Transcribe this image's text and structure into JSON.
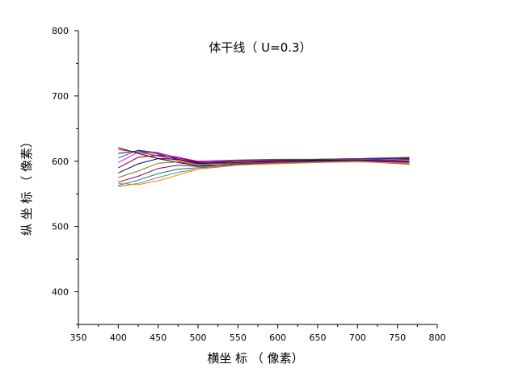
{
  "chart_data": {
    "type": "line",
    "title": "体干线（ U=0.3）",
    "xlabel": "横坐 标 （ 像素）",
    "ylabel": "纵 坐 标 （ 像素）",
    "xlim": [
      350,
      800
    ],
    "ylim": [
      350,
      800
    ],
    "x_ticks": [
      350,
      400,
      450,
      500,
      550,
      600,
      650,
      700,
      750,
      800
    ],
    "y_ticks": [
      400,
      500,
      600,
      700,
      800
    ],
    "grid": false,
    "legend": "none",
    "x_range": [
      400,
      765
    ],
    "series_colors": [
      "#000000",
      "#ff0000",
      "#0000ff",
      "#008000",
      "#ff00ff",
      "#800000",
      "#000080",
      "#808000",
      "#800080",
      "#008080",
      "#808080",
      "#ff8000"
    ],
    "envelope": {
      "x": [
        400,
        425,
        450,
        475,
        500,
        525,
        550,
        600,
        650,
        700,
        765
      ],
      "upper": [
        621,
        618,
        613,
        606,
        600,
        602,
        604,
        604,
        604,
        605,
        607
      ],
      "lower": [
        561,
        563,
        568,
        578,
        588,
        592,
        593,
        596,
        597,
        598,
        595
      ]
    },
    "series": [
      {
        "y": [
          621,
          612,
          604,
          598,
          593,
          595,
          597,
          600,
          602,
          603,
          604
        ]
      },
      {
        "y": [
          618,
          614,
          608,
          601,
          596,
          598,
          600,
          601,
          603,
          603,
          605
        ]
      },
      {
        "y": [
          612,
          616,
          611,
          603,
          598,
          599,
          600,
          602,
          603,
          604,
          603
        ]
      },
      {
        "y": [
          605,
          617,
          613,
          605,
          600,
          601,
          602,
          603,
          603,
          604,
          606
        ]
      },
      {
        "y": [
          598,
          614,
          612,
          606,
          600,
          600,
          601,
          602,
          602,
          603,
          601
        ]
      },
      {
        "y": [
          590,
          606,
          609,
          605,
          599,
          598,
          600,
          601,
          602,
          602,
          600
        ]
      },
      {
        "y": [
          582,
          596,
          604,
          603,
          597,
          597,
          598,
          600,
          601,
          602,
          599
        ]
      },
      {
        "y": [
          575,
          585,
          597,
          599,
          595,
          595,
          597,
          599,
          600,
          601,
          598
        ]
      },
      {
        "y": [
          568,
          577,
          589,
          594,
          592,
          593,
          596,
          598,
          600,
          601,
          597
        ]
      },
      {
        "y": [
          563,
          571,
          581,
          588,
          590,
          592,
          595,
          597,
          599,
          600,
          596
        ]
      },
      {
        "y": [
          561,
          566,
          575,
          583,
          588,
          591,
          594,
          597,
          598,
          600,
          595
        ]
      },
      {
        "y": [
          566,
          564,
          570,
          579,
          588,
          592,
          594,
          596,
          598,
          599,
          597
        ]
      }
    ]
  }
}
